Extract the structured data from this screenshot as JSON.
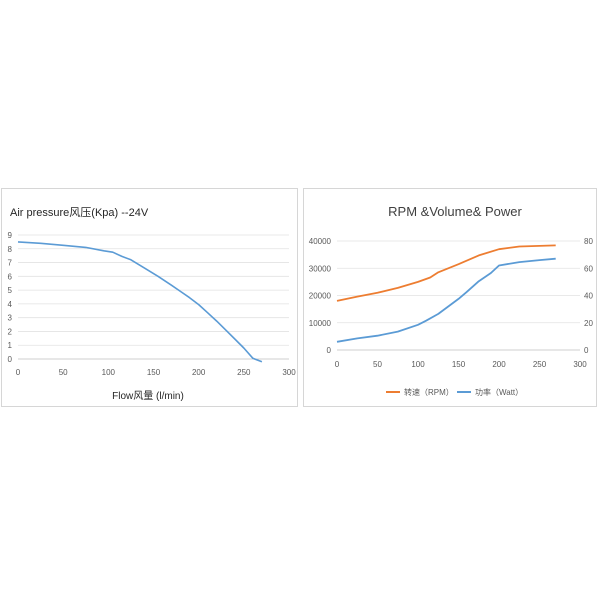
{
  "chart_data": [
    {
      "type": "line",
      "title": "Air pressure风压(Kpa)  --24V",
      "xlabel": "Flow风量  (l/min)",
      "ylabel": "",
      "xlim": [
        0,
        300
      ],
      "ylim": [
        0,
        9
      ],
      "xticks": [
        0,
        50,
        100,
        150,
        200,
        250,
        300
      ],
      "yticks": [
        0,
        1,
        2,
        3,
        4,
        5,
        6,
        7,
        8,
        9
      ],
      "grid": true,
      "color": "#5b9bd5",
      "series": [
        {
          "name": "Air pressure",
          "x": [
            0,
            25,
            50,
            75,
            95,
            105,
            115,
            125,
            140,
            155,
            170,
            180,
            190,
            200,
            210,
            220,
            230,
            240,
            250,
            260,
            270
          ],
          "values": [
            8.5,
            8.4,
            8.25,
            8.1,
            7.85,
            7.75,
            7.45,
            7.2,
            6.6,
            6.0,
            5.35,
            4.9,
            4.45,
            3.95,
            3.35,
            2.75,
            2.1,
            1.45,
            0.8,
            0.05,
            -0.2
          ]
        }
      ]
    },
    {
      "type": "line",
      "title": "RPM &Volume& Power",
      "xlim": [
        0,
        300
      ],
      "ylim": [
        0,
        40000
      ],
      "y2lim": [
        0,
        80
      ],
      "xticks": [
        0,
        50,
        100,
        150,
        200,
        250,
        300
      ],
      "yticks": [
        "0",
        "10000",
        "20000",
        "30000",
        "40000"
      ],
      "y2ticks": [
        "0",
        "20",
        "40",
        "60",
        "80"
      ],
      "grid": true,
      "legend_position": "bottom",
      "series": [
        {
          "name": "转速（RPM）",
          "axis": "left",
          "color": "#ed7d31",
          "x": [
            0,
            25,
            50,
            75,
            100,
            115,
            125,
            150,
            175,
            200,
            225,
            250,
            270
          ],
          "values": [
            18000,
            19600,
            21000,
            22800,
            25000,
            26600,
            28500,
            31500,
            34700,
            37000,
            38000,
            38200,
            38400
          ]
        },
        {
          "name": "功率（Watt）",
          "axis": "right",
          "color": "#5b9bd5",
          "x": [
            0,
            25,
            50,
            75,
            100,
            110,
            125,
            150,
            160,
            175,
            190,
            200,
            225,
            250,
            270
          ],
          "values": [
            6,
            8.5,
            10.5,
            13.5,
            18.5,
            21.5,
            26.5,
            37.5,
            42.5,
            50.5,
            56.5,
            62,
            64.5,
            66,
            67
          ]
        }
      ]
    }
  ]
}
